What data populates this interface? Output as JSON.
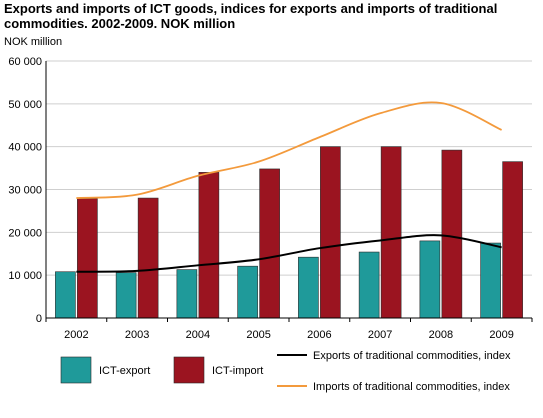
{
  "title": "Exports and imports of ICT goods, indices for exports and imports of traditional commodities. 2002-2009. NOK million",
  "unit_label": "NOK million",
  "colors": {
    "ict_export": "#1f9a9a",
    "ict_import": "#9b1420",
    "trad_export_line": "#000000",
    "trad_import_line": "#f39a3c",
    "grid": "#cfcfcf"
  },
  "chart_data": {
    "type": "bar",
    "categories": [
      "2002",
      "2003",
      "2004",
      "2005",
      "2006",
      "2007",
      "2008",
      "2009"
    ],
    "ylim": [
      0,
      60000
    ],
    "yticks": [
      0,
      10000,
      20000,
      30000,
      40000,
      50000,
      60000
    ],
    "ytick_labels": [
      "0",
      "10 000",
      "20 000",
      "30 000",
      "40 000",
      "50 000",
      "60 000"
    ],
    "ylabel": "NOK million",
    "grid": true,
    "series": [
      {
        "name": "ICT-export",
        "kind": "bar",
        "color": "#1f9a9a",
        "values": [
          10800,
          10600,
          11300,
          12100,
          14200,
          15400,
          18000,
          17500
        ]
      },
      {
        "name": "ICT-import",
        "kind": "bar",
        "color": "#9b1420",
        "values": [
          27900,
          28000,
          34000,
          34800,
          40000,
          40000,
          39200,
          36500
        ]
      },
      {
        "name": "Exports of traditional commodities, index",
        "kind": "line",
        "color": "#000000",
        "values": [
          10800,
          11000,
          12300,
          13700,
          16300,
          18100,
          19300,
          16500
        ]
      },
      {
        "name": "Imports of traditional commodities, index",
        "kind": "line",
        "color": "#f39a3c",
        "values": [
          28000,
          28800,
          33200,
          36500,
          42200,
          47800,
          50200,
          43900
        ]
      }
    ],
    "legend": {
      "placement": "bottom",
      "items": [
        "ICT-export",
        "ICT-import",
        "Exports of traditional commodities, index",
        "Imports of traditional commodities, index"
      ]
    }
  }
}
